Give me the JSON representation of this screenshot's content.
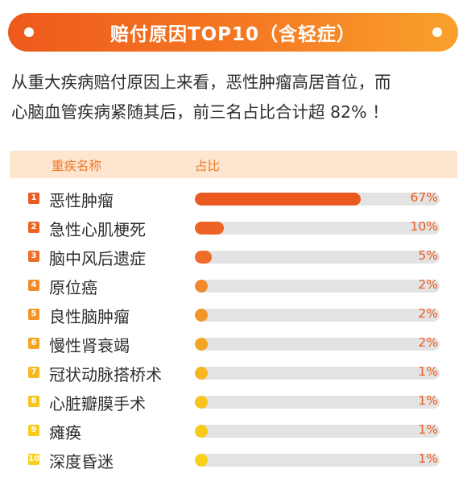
{
  "banner": {
    "title": "赔付原因TOP10（含轻症）"
  },
  "intro": {
    "line1": "从重大疾病赔付原因上来看，恶性肿瘤高居首位，而",
    "line2": "心脑血管疾病紧随其后，前三名占比合计超 82% ！"
  },
  "chart_data": {
    "type": "bar",
    "orientation": "horizontal",
    "columns": [
      "重疾名称",
      "占比"
    ],
    "categories": [
      "恶性肿瘤",
      "急性心肌梗死",
      "脑中风后遗症",
      "原位癌",
      "良性脑肿瘤",
      "慢性肾衰竭",
      "冠状动脉搭桥术",
      "心脏瓣膜手术",
      "瘫痪",
      "深度昏迷"
    ],
    "ranks": [
      "1",
      "2",
      "3",
      "4",
      "5",
      "6",
      "7",
      "8",
      "9",
      "10"
    ],
    "values": [
      67,
      10,
      5,
      2,
      2,
      2,
      1,
      1,
      1,
      1
    ],
    "value_labels": [
      "67%",
      "10%",
      "5%",
      "2%",
      "2%",
      "2%",
      "1%",
      "1%",
      "1%",
      "1%"
    ],
    "xlim": [
      0,
      100
    ],
    "colors": [
      "#ea5a20",
      "#ec6324",
      "#ee6d28",
      "#f18a2a",
      "#f39428",
      "#f5a524",
      "#f6b720",
      "#f7c31d",
      "#f8ca1a",
      "#f8d01a"
    ],
    "track_color": "#e3e3e3"
  }
}
